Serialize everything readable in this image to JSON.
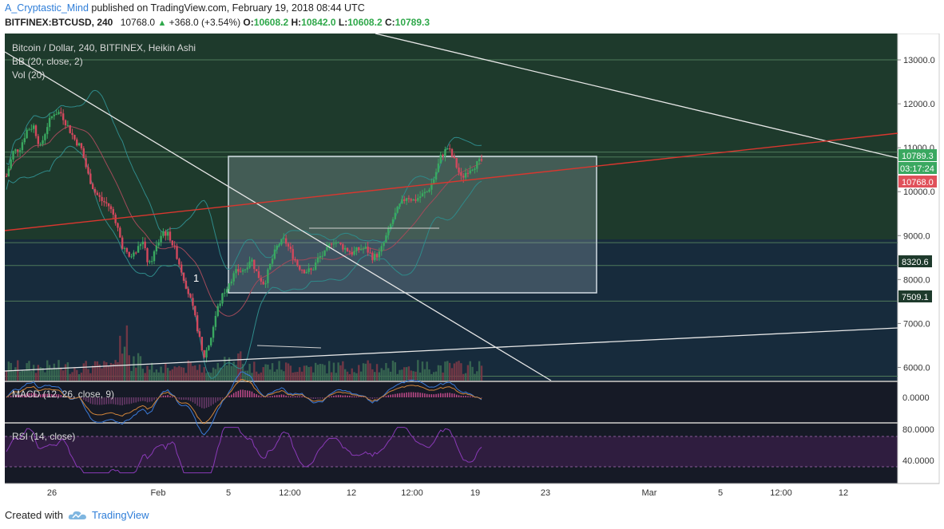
{
  "header": {
    "user": "A_Cryptastic_Mind",
    "published": "published on TradingView.com, February 19, 2018 08:44 UTC",
    "symbol": "BITFINEX:BTCUSD, 240",
    "last": "10768.0",
    "change": "+368.0 (+3.54%)",
    "o_label": "O:",
    "o_val": "10608.2",
    "h_label": "H:",
    "h_val": "10842.0",
    "l_label": "L:",
    "l_val": "10608.2",
    "c_label": "C:",
    "c_val": "10789.3"
  },
  "legend": {
    "main": "Bitcoin / Dollar, 240, BITFINEX, Heikin Ashi",
    "bb": "BB (20, close, 2)",
    "vol": "Vol (20)",
    "macd": "MACD (12, 26, close, 9)",
    "rsi": "RSI (14, close)"
  },
  "annotation_label": "1",
  "price_tags": {
    "current": "10789.3",
    "countdown": "03:17:24",
    "red": "10768.0",
    "level1": "8320.6",
    "level2": "7509.1"
  },
  "colors": {
    "bg_green": "#1e3a2c",
    "bg_blue": "#17293a",
    "up": "#3aa860",
    "down": "#d2485d",
    "accent": "#2f7ed8"
  },
  "footer": {
    "created": "Created with",
    "brand": "TradingView"
  },
  "chart_data": {
    "type": "candlestick",
    "title": "Bitcoin / Dollar, 240, BITFINEX, Heikin Ashi",
    "price_axis": {
      "ylim": [
        5700,
        13600
      ],
      "ticks": [
        6000,
        7000,
        8000,
        9000,
        10000,
        11000,
        12000,
        13000
      ],
      "tick_labels": [
        "6000.0",
        "7000.0",
        "8000.0",
        "9000.0",
        "10000.0",
        "11000.0",
        "12000.0",
        "13000.0"
      ]
    },
    "time_axis": {
      "tick_labels": [
        "26",
        "Feb",
        "5",
        "12:00",
        "12",
        "12:00",
        "19",
        "23",
        "Mar",
        "5",
        "12:00",
        "12"
      ]
    },
    "macd_axis": {
      "tick_labels": [
        "0.0000"
      ]
    },
    "rsi_axis": {
      "ylim": [
        20,
        90
      ],
      "tick_labels": [
        "80.0000",
        "40.0000"
      ],
      "bands": [
        30,
        70
      ]
    },
    "horizontal_levels": [
      13000,
      10900,
      10789.3,
      8840,
      8320.6,
      7509.1,
      5800
    ],
    "rectangle": {
      "price_top": 10750,
      "price_bottom": 7550
    },
    "price_path": [
      [
        0,
        10350
      ],
      [
        0.02,
        10900
      ],
      [
        0.04,
        11000
      ],
      [
        0.06,
        11400
      ],
      [
        0.08,
        11500
      ],
      [
        0.1,
        11000
      ],
      [
        0.12,
        11500
      ],
      [
        0.14,
        11800
      ],
      [
        0.16,
        11800
      ],
      [
        0.18,
        11500
      ],
      [
        0.2,
        11200
      ],
      [
        0.22,
        11000
      ],
      [
        0.24,
        10400
      ],
      [
        0.26,
        10000
      ],
      [
        0.28,
        9800
      ],
      [
        0.3,
        9700
      ],
      [
        0.32,
        9400
      ],
      [
        0.34,
        8800
      ],
      [
        0.36,
        8500
      ],
      [
        0.38,
        8600
      ],
      [
        0.4,
        8900
      ],
      [
        0.42,
        8300
      ],
      [
        0.44,
        8700
      ],
      [
        0.46,
        9100
      ],
      [
        0.48,
        9000
      ],
      [
        0.5,
        8600
      ],
      [
        0.52,
        8100
      ],
      [
        0.54,
        7600
      ],
      [
        0.56,
        7000
      ],
      [
        0.58,
        6200
      ],
      [
        0.6,
        6600
      ],
      [
        0.62,
        7300
      ],
      [
        0.64,
        7700
      ],
      [
        0.66,
        8000
      ],
      [
        0.68,
        8200
      ],
      [
        0.7,
        8200
      ],
      [
        0.72,
        8500
      ],
      [
        0.74,
        8100
      ],
      [
        0.76,
        7900
      ],
      [
        0.78,
        8400
      ],
      [
        0.8,
        8800
      ],
      [
        0.82,
        8900
      ],
      [
        0.84,
        8600
      ],
      [
        0.86,
        8300
      ],
      [
        0.88,
        8200
      ],
      [
        0.9,
        8200
      ],
      [
        0.92,
        8500
      ],
      [
        0.94,
        8600
      ],
      [
        0.96,
        8900
      ],
      [
        0.98,
        8800
      ],
      [
        1.0,
        8700
      ],
      [
        1.02,
        8600
      ],
      [
        1.04,
        8700
      ],
      [
        1.06,
        8700
      ],
      [
        1.08,
        8500
      ],
      [
        1.1,
        8600
      ],
      [
        1.12,
        9000
      ],
      [
        1.14,
        9400
      ],
      [
        1.16,
        9700
      ],
      [
        1.18,
        9900
      ],
      [
        1.2,
        9800
      ],
      [
        1.22,
        9900
      ],
      [
        1.24,
        10000
      ],
      [
        1.26,
        10300
      ],
      [
        1.28,
        10800
      ],
      [
        1.3,
        11000
      ],
      [
        1.32,
        10700
      ],
      [
        1.34,
        10300
      ],
      [
        1.36,
        10500
      ],
      [
        1.38,
        10600
      ],
      [
        1.4,
        10700
      ]
    ]
  }
}
